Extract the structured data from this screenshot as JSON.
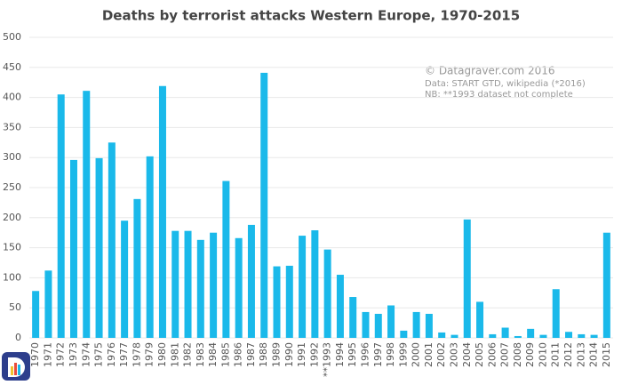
{
  "chart_data": {
    "type": "bar",
    "title": "Deaths by terrorist attacks Western Europe, 1970-2015",
    "annotations": [
      "© Datagraver.com 2016",
      "Data: START GTD, wikipedia (*2016)",
      "NB: **1993 dataset not complete"
    ],
    "categories": [
      "1970",
      "1971",
      "1972",
      "1973",
      "1974",
      "1975",
      "1976",
      "1977",
      "1978",
      "1979",
      "1980",
      "1981",
      "1982",
      "1983",
      "1984",
      "1985",
      "1986",
      "1987",
      "1988",
      "1989",
      "1990",
      "1991",
      "1992",
      "**1993",
      "1994",
      "1995",
      "1996",
      "1997",
      "1998",
      "1999",
      "2000",
      "2001",
      "2002",
      "2003",
      "2004",
      "2005",
      "2006",
      "2007",
      "2008",
      "2009",
      "2010",
      "2011",
      "2012",
      "2013",
      "2014",
      "2015"
    ],
    "values": [
      78,
      112,
      405,
      296,
      411,
      299,
      325,
      195,
      231,
      302,
      419,
      178,
      178,
      163,
      175,
      261,
      166,
      188,
      441,
      119,
      120,
      170,
      179,
      147,
      105,
      68,
      43,
      40,
      54,
      12,
      43,
      40,
      9,
      5,
      197,
      60,
      6,
      17,
      3,
      15,
      5,
      81,
      10,
      6,
      5,
      175
    ],
    "color": "#1ab9ea",
    "ylim": [
      0,
      500
    ],
    "yticks": [
      0,
      50,
      100,
      150,
      200,
      250,
      300,
      350,
      400,
      450,
      500
    ],
    "grid": true
  }
}
